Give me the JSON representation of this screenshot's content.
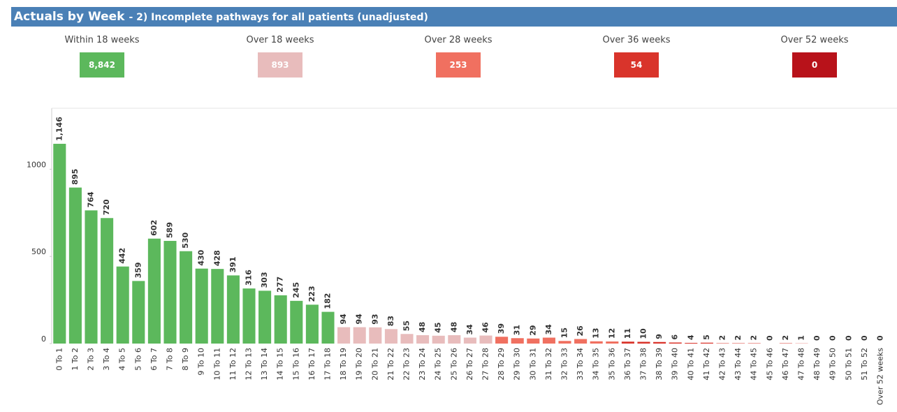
{
  "header": {
    "title": "Actuals by Week",
    "subtitle": "- 2) Incomplete pathways for all patients (unadjusted)"
  },
  "cards": [
    {
      "label": "Within 18 weeks",
      "value": "8,842",
      "color": "#5cb85c"
    },
    {
      "label": "Over 18 weeks",
      "value": "893",
      "color": "#e8bcbc"
    },
    {
      "label": "Over 28 weeks",
      "value": "253",
      "color": "#f07060"
    },
    {
      "label": "Over 36 weeks",
      "value": "54",
      "color": "#d9342b"
    },
    {
      "label": "Over 52 weeks",
      "value": "0",
      "color": "#b8121a"
    }
  ],
  "chart_data": {
    "type": "bar",
    "categories": [
      "0 To 1",
      "1 To 2",
      "2 To 3",
      "3 To 4",
      "4 To 5",
      "5 To 6",
      "6 To 7",
      "7 To 8",
      "8 To 9",
      "9 To 10",
      "10 To 11",
      "11 To 12",
      "12 To 13",
      "13 To 14",
      "14 To 15",
      "15 To 16",
      "16 To 17",
      "17 To 18",
      "18 To 19",
      "19 To 20",
      "20 To 21",
      "21 To 22",
      "22 To 23",
      "23 To 24",
      "24 To 25",
      "25 To 26",
      "26 To 27",
      "27 To 28",
      "28 To 29",
      "29 To 30",
      "30 To 31",
      "31 To 32",
      "32 To 33",
      "33 To 34",
      "34 To 35",
      "35 To 36",
      "36 To 37",
      "37 To 38",
      "38 To 39",
      "39 To 40",
      "40 To 41",
      "41 To 42",
      "42 To 43",
      "43 To 44",
      "44 To 45",
      "45 To 46",
      "46 To 47",
      "47 To 48",
      "48 To 49",
      "49 To 50",
      "50 To 51",
      "51 To 52",
      "Over 52 weeks"
    ],
    "values": [
      1146,
      895,
      764,
      720,
      442,
      359,
      602,
      589,
      530,
      430,
      428,
      391,
      316,
      303,
      277,
      245,
      223,
      182,
      94,
      94,
      93,
      83,
      55,
      48,
      45,
      48,
      34,
      46,
      39,
      31,
      29,
      34,
      15,
      26,
      13,
      12,
      11,
      10,
      9,
      6,
      4,
      5,
      2,
      2,
      2,
      0,
      2,
      1,
      0,
      0,
      0,
      0,
      0
    ],
    "value_labels": [
      "1,146",
      "895",
      "764",
      "720",
      "442",
      "359",
      "602",
      "589",
      "530",
      "430",
      "428",
      "391",
      "316",
      "303",
      "277",
      "245",
      "223",
      "182",
      "94",
      "94",
      "93",
      "83",
      "55",
      "48",
      "45",
      "48",
      "34",
      "46",
      "39",
      "31",
      "29",
      "34",
      "15",
      "26",
      "13",
      "12",
      "11",
      "10",
      "9",
      "6",
      "4",
      "5",
      "2",
      "2",
      "2",
      "0",
      "2",
      "1",
      "0",
      "0",
      "0",
      "0",
      "0"
    ],
    "colors": [
      "#5cb85c",
      "#5cb85c",
      "#5cb85c",
      "#5cb85c",
      "#5cb85c",
      "#5cb85c",
      "#5cb85c",
      "#5cb85c",
      "#5cb85c",
      "#5cb85c",
      "#5cb85c",
      "#5cb85c",
      "#5cb85c",
      "#5cb85c",
      "#5cb85c",
      "#5cb85c",
      "#5cb85c",
      "#5cb85c",
      "#e8bcbc",
      "#e8bcbc",
      "#e8bcbc",
      "#e8bcbc",
      "#e8bcbc",
      "#e8bcbc",
      "#e8bcbc",
      "#e8bcbc",
      "#e8bcbc",
      "#e8bcbc",
      "#f07060",
      "#f07060",
      "#f07060",
      "#f07060",
      "#f07060",
      "#f07060",
      "#f07060",
      "#f07060",
      "#d9342b",
      "#d9342b",
      "#d9342b",
      "#d9342b",
      "#d9342b",
      "#d9342b",
      "#d9342b",
      "#d9342b",
      "#d9342b",
      "#d9342b",
      "#d9342b",
      "#d9342b",
      "#d9342b",
      "#d9342b",
      "#d9342b",
      "#d9342b",
      "#b8121a"
    ],
    "ylim": [
      0,
      1350
    ],
    "yticks": [
      0,
      500,
      1000
    ]
  }
}
